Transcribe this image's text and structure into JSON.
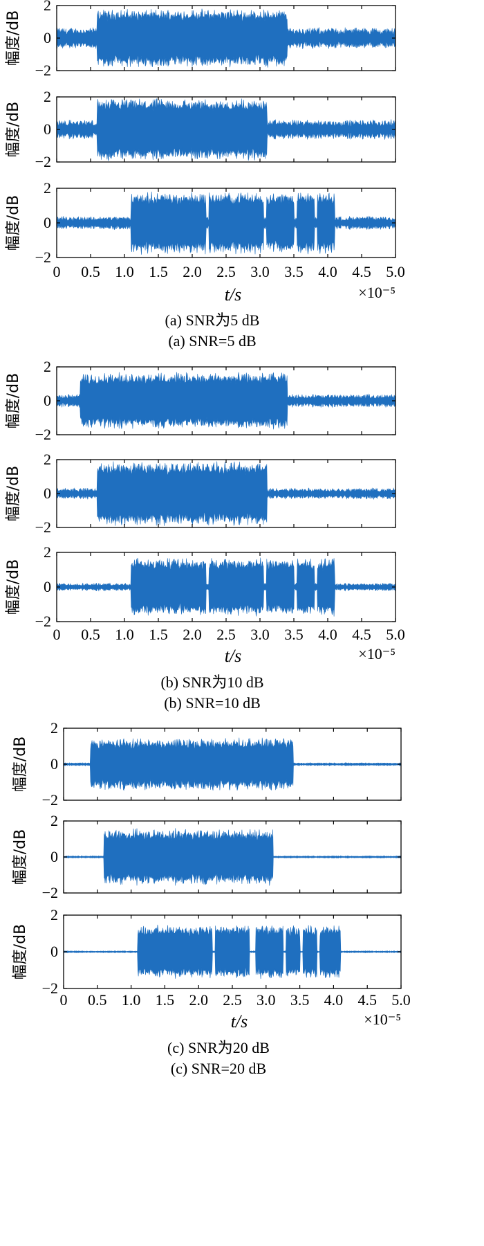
{
  "chart_data": [
    {
      "type": "line",
      "group": "a",
      "caption_cn": "(a) SNR为5 dB",
      "caption_en": "(a) SNR=5 dB",
      "snr_db": 5,
      "xlabel": "t/s",
      "x_multiplier": "×10⁻⁵",
      "xlim": [
        0,
        5.0
      ],
      "x_ticks": [
        "0",
        "0.5",
        "1.0",
        "1.5",
        "2.0",
        "2.5",
        "3.0",
        "3.5",
        "4.0",
        "4.5",
        "5.0"
      ],
      "panels": [
        {
          "ylabel": "幅度/dB",
          "ylim": [
            -2,
            2
          ],
          "y_ticks": [
            "2",
            "0",
            "−2"
          ],
          "signal_on": [
            0.6,
            3.4
          ],
          "peak_amplitude": 1.6,
          "noise_amplitude": 0.6,
          "pulses": []
        },
        {
          "ylabel": "幅度/dB",
          "ylim": [
            -2,
            2
          ],
          "y_ticks": [
            "2",
            "0",
            "−2"
          ],
          "signal_on": [
            0.6,
            3.1
          ],
          "peak_amplitude": 1.7,
          "noise_amplitude": 0.55,
          "pulses": []
        },
        {
          "ylabel": "幅度/dB",
          "ylim": [
            -2,
            2
          ],
          "y_ticks": [
            "2",
            "0",
            "−2"
          ],
          "signal_on": [
            1.1,
            4.1
          ],
          "peak_amplitude": 1.6,
          "noise_amplitude": 0.35,
          "pulses": [
            [
              1.1,
              2.2
            ],
            [
              2.25,
              3.05
            ],
            [
              3.1,
              3.5
            ],
            [
              3.55,
              3.8
            ],
            [
              3.85,
              4.1
            ]
          ]
        }
      ]
    },
    {
      "type": "line",
      "group": "b",
      "caption_cn": "(b) SNR为10 dB",
      "caption_en": "(b) SNR=10 dB",
      "snr_db": 10,
      "xlabel": "t/s",
      "x_multiplier": "×10⁻⁵",
      "xlim": [
        0,
        5.0
      ],
      "x_ticks": [
        "0",
        "0.5",
        "1.0",
        "1.5",
        "2.0",
        "2.5",
        "3.0",
        "3.5",
        "4.0",
        "4.5",
        "5.0"
      ],
      "panels": [
        {
          "ylabel": "幅度/dB",
          "ylim": [
            -2,
            2
          ],
          "y_ticks": [
            "2",
            "0",
            "−2"
          ],
          "signal_on": [
            0.35,
            3.4
          ],
          "peak_amplitude": 1.5,
          "noise_amplitude": 0.35,
          "pulses": []
        },
        {
          "ylabel": "幅度/dB",
          "ylim": [
            -2,
            2
          ],
          "y_ticks": [
            "2",
            "0",
            "−2"
          ],
          "signal_on": [
            0.6,
            3.1
          ],
          "peak_amplitude": 1.7,
          "noise_amplitude": 0.3,
          "pulses": []
        },
        {
          "ylabel": "幅度/dB",
          "ylim": [
            -2,
            2
          ],
          "y_ticks": [
            "2",
            "0",
            "−2"
          ],
          "signal_on": [
            1.1,
            4.1
          ],
          "peak_amplitude": 1.5,
          "noise_amplitude": 0.2,
          "pulses": [
            [
              1.1,
              2.2
            ],
            [
              2.25,
              3.05
            ],
            [
              3.1,
              3.5
            ],
            [
              3.55,
              3.8
            ],
            [
              3.85,
              4.1
            ]
          ]
        }
      ]
    },
    {
      "type": "line",
      "group": "c",
      "caption_cn": "(c) SNR为20 dB",
      "caption_en": "(c) SNR=20 dB",
      "snr_db": 20,
      "xlabel": "t/s",
      "x_multiplier": "×10⁻⁵",
      "xlim": [
        0,
        5.0
      ],
      "x_ticks": [
        "0",
        "0.5",
        "1.0",
        "1.5",
        "2.0",
        "2.5",
        "3.0",
        "3.5",
        "4.0",
        "4.5",
        "5.0"
      ],
      "panels": [
        {
          "ylabel": "幅度/dB",
          "ylim": [
            -2,
            2
          ],
          "y_ticks": [
            "2",
            "0",
            "−2"
          ],
          "signal_on": [
            0.4,
            3.4
          ],
          "peak_amplitude": 1.3,
          "noise_amplitude": 0.08,
          "pulses": []
        },
        {
          "ylabel": "幅度/dB",
          "ylim": [
            -2,
            2
          ],
          "y_ticks": [
            "2",
            "0",
            "−2"
          ],
          "signal_on": [
            0.6,
            3.1
          ],
          "peak_amplitude": 1.4,
          "noise_amplitude": 0.06,
          "pulses": []
        },
        {
          "ylabel": "幅度/dB",
          "ylim": [
            -2,
            2
          ],
          "y_ticks": [
            "2",
            "0",
            "−2"
          ],
          "signal_on": [
            1.1,
            4.1
          ],
          "peak_amplitude": 1.3,
          "noise_amplitude": 0.05,
          "pulses": [
            [
              1.1,
              2.2
            ],
            [
              2.25,
              2.75
            ],
            [
              2.85,
              3.25
            ],
            [
              3.3,
              3.5
            ],
            [
              3.55,
              3.75
            ],
            [
              3.8,
              4.0
            ],
            [
              4.0,
              4.15
            ]
          ]
        }
      ]
    }
  ],
  "colors": {
    "signal": "#1f6fbf",
    "signal_light": "#3d8fd8",
    "axis": "#000000"
  }
}
